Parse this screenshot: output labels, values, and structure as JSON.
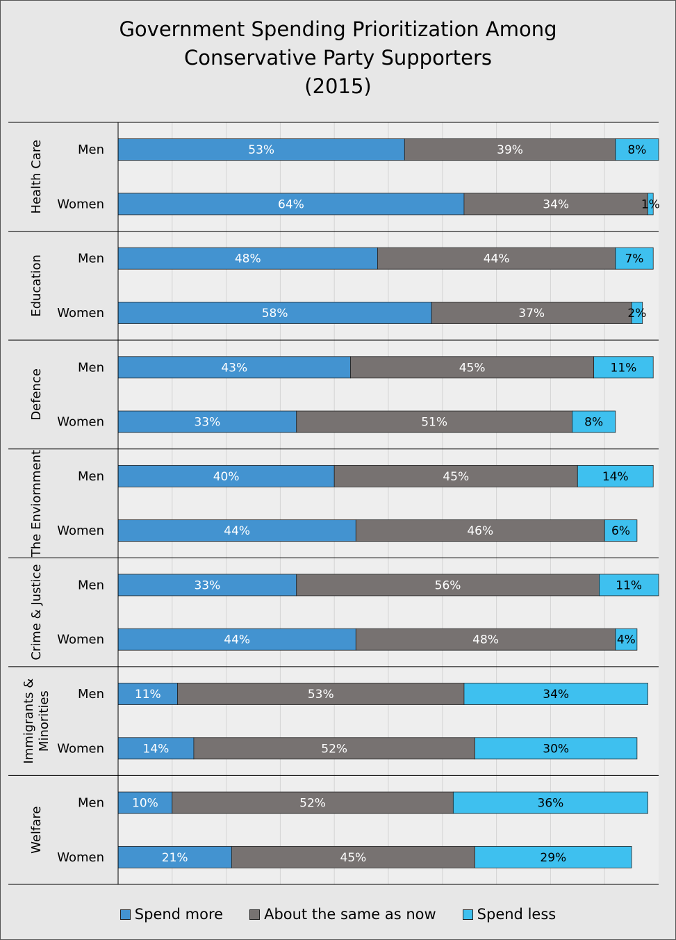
{
  "chart_data": {
    "type": "bar",
    "orientation": "horizontal",
    "stacked": true,
    "title": [
      "Government Spending Prioritization Among",
      "Conservative Party Supporters",
      "(2015)"
    ],
    "groups": [
      {
        "name": "Health Care",
        "rows": [
          {
            "label": "Men",
            "values": [
              53,
              39,
              8
            ],
            "labels": [
              "53%",
              "39%",
              "8%"
            ]
          },
          {
            "label": "Women",
            "values": [
              64,
              34,
              1
            ],
            "labels": [
              "64%",
              "34%",
              "1%"
            ]
          }
        ]
      },
      {
        "name": "Education",
        "rows": [
          {
            "label": "Men",
            "values": [
              48,
              44,
              7
            ],
            "labels": [
              "48%",
              "44%",
              "7%"
            ]
          },
          {
            "label": "Women",
            "values": [
              58,
              37,
              2
            ],
            "labels": [
              "58%",
              "37%",
              "2%"
            ]
          }
        ]
      },
      {
        "name": "Defence",
        "rows": [
          {
            "label": "Men",
            "values": [
              43,
              45,
              11
            ],
            "labels": [
              "43%",
              "45%",
              "11%"
            ]
          },
          {
            "label": "Women",
            "values": [
              33,
              51,
              8
            ],
            "labels": [
              "33%",
              "51%",
              "8%"
            ]
          }
        ]
      },
      {
        "name": "The Enviornment",
        "rows": [
          {
            "label": "Men",
            "values": [
              40,
              45,
              14
            ],
            "labels": [
              "40%",
              "45%",
              "14%"
            ]
          },
          {
            "label": "Women",
            "values": [
              44,
              46,
              6
            ],
            "labels": [
              "44%",
              "46%",
              "6%"
            ]
          }
        ]
      },
      {
        "name": "Crime & Justice",
        "rows": [
          {
            "label": "Men",
            "values": [
              33,
              56,
              11
            ],
            "labels": [
              "33%",
              "56%",
              "11%"
            ]
          },
          {
            "label": "Women",
            "values": [
              44,
              48,
              4
            ],
            "labels": [
              "44%",
              "48%",
              "4%"
            ]
          }
        ]
      },
      {
        "name": "Immigrants & Minorities",
        "name_lines": [
          "Immigrants &",
          "Minorities"
        ],
        "rows": [
          {
            "label": "Men",
            "values": [
              11,
              53,
              34
            ],
            "labels": [
              "11%",
              "53%",
              "34%"
            ]
          },
          {
            "label": "Women",
            "values": [
              14,
              52,
              30
            ],
            "labels": [
              "14%",
              "52%",
              "30%"
            ]
          }
        ]
      },
      {
        "name": "Welfare",
        "rows": [
          {
            "label": "Men",
            "values": [
              10,
              52,
              36
            ],
            "labels": [
              "10%",
              "52%",
              "36%"
            ]
          },
          {
            "label": "Women",
            "values": [
              21,
              45,
              29
            ],
            "labels": [
              "21%",
              "45%",
              "29%"
            ]
          }
        ]
      }
    ],
    "series": [
      {
        "name": "Spend more",
        "color": "#4393d0"
      },
      {
        "name": "About the same as now",
        "color": "#777271"
      },
      {
        "name": "Spend less",
        "color": "#3ec0ef"
      }
    ],
    "legend_position": "bottom"
  },
  "colors": {
    "background": "#e7e7e7",
    "plot_background": "#eeeeee",
    "grid": "#d4d4d4",
    "axis": "#000000",
    "label_light": "#ffffff",
    "label_dark": "#000000"
  }
}
